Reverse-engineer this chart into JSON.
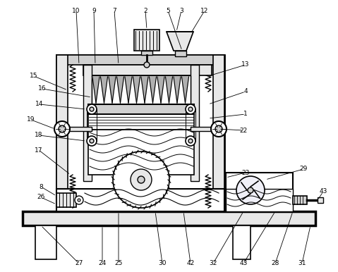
{
  "bg": "#ffffff",
  "lc": "#000000",
  "gray_light": "#e8e8e8",
  "gray_med": "#d0d0d0",
  "gray_dark": "#b0b0b0",
  "figsize": [
    4.79,
    3.86
  ],
  "dpi": 100
}
